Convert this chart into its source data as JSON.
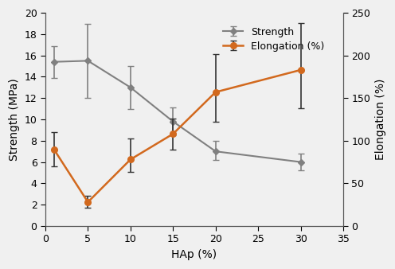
{
  "hap_x": [
    1,
    5,
    10,
    15,
    20,
    30
  ],
  "strength_y": [
    15.4,
    15.5,
    13.0,
    9.8,
    7.0,
    6.0
  ],
  "strength_yerr_upper": [
    1.5,
    3.5,
    2.0,
    1.3,
    1.0,
    0.8
  ],
  "strength_yerr_lower": [
    1.5,
    3.5,
    2.0,
    1.3,
    0.8,
    0.8
  ],
  "elongation_y": [
    90,
    28,
    78,
    108,
    157,
    183
  ],
  "elongation_yerr_upper": [
    20,
    7,
    25,
    18,
    45,
    55
  ],
  "elongation_yerr_lower": [
    20,
    7,
    15,
    18,
    35,
    45
  ],
  "strength_color": "#808080",
  "elongation_color": "#D2691E",
  "strength_label": "Strength",
  "elongation_label": "Elongation (%)",
  "xlabel": "HAp (%)",
  "ylabel_left": "Strength (MPa)",
  "ylabel_right": "Elongation (%)",
  "xlim": [
    0,
    35
  ],
  "ylim_left": [
    0,
    20
  ],
  "ylim_right": [
    0,
    250
  ],
  "xticks": [
    0,
    5,
    10,
    15,
    20,
    25,
    30,
    35
  ],
  "yticks_left": [
    0,
    2,
    4,
    6,
    8,
    10,
    12,
    14,
    16,
    18,
    20
  ],
  "yticks_right": [
    0,
    50,
    100,
    150,
    200,
    250
  ],
  "bg_color": "#f0f0f0",
  "fig_color": "#f0f0f0"
}
